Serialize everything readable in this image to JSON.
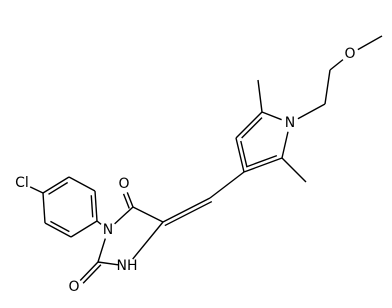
{
  "nodes": [
    {
      "label": "Cl"
    },
    {
      "label": "N"
    },
    {
      "label": "O"
    },
    {
      "label": "O"
    },
    {
      "label": "NH"
    },
    {
      "label": "N"
    },
    {
      "label": "O"
    }
  ]
}
